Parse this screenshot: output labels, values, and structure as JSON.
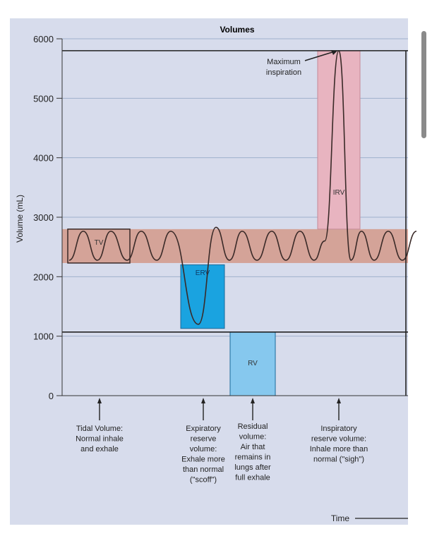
{
  "chart_data": {
    "type": "line",
    "title": "Volumes",
    "ylabel": "Volume (mL)",
    "xlabel": "Time",
    "ylim": [
      0,
      6000
    ],
    "yticks": [
      "0",
      "1000",
      "2000",
      "3000",
      "4000",
      "5000",
      "6000"
    ],
    "grid": true,
    "reference_lines": {
      "max_inspiration": 5800,
      "residual_level": 1070
    },
    "regions": [
      {
        "label": "TV",
        "ymin": 2230,
        "ymax": 2800,
        "color": "#d4a398"
      },
      {
        "label": "ERV",
        "ymin": 1130,
        "ymax": 2200,
        "color": "#1aa3e0"
      },
      {
        "label": "RV",
        "ymin": 0,
        "ymax": 1070,
        "color": "#86c8ee"
      },
      {
        "label": "IRV",
        "ymin": 2800,
        "ymax": 5800,
        "color": "#e8b4c0"
      }
    ],
    "annotation": "Maximum\ninspiration",
    "captions": [
      "Tidal Volume:\nNormal inhale\nand exhale",
      "Expiratory\nreserve\nvolume:\nExhale more\nthan normal\n(\"scoff\")",
      "Residual\nvolume:\nAir that\nremains in\nlungs after\nfull exhale",
      "Inspiratory\nreserve volume:\nInhale more than\nnormal (\"sigh\")"
    ]
  },
  "colors": {
    "background": "#d7dcec",
    "grid": "#9fb0cc"
  }
}
